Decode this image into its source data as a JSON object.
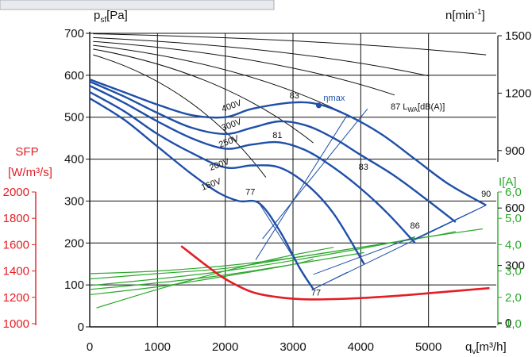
{
  "chart_data": {
    "type": "line",
    "title": "",
    "xlabel": {
      "main": "q",
      "sub": "v",
      "unit": "[m³/h]"
    },
    "ylabel_left": {
      "main": "p",
      "sub": "sf",
      "unit": "[Pa]"
    },
    "ylabel_right_rpm": {
      "main": "n[min",
      "sup": "-1",
      "close": "]"
    },
    "ylabel_sfp": {
      "line1": "SFP",
      "line2": "[W/m³/s]"
    },
    "ylabel_current": "I[A]",
    "xlim": [
      0,
      6000
    ],
    "ylim": [
      0,
      700
    ],
    "grid": true,
    "x_ticks": [
      "0",
      "1000",
      "2000",
      "3000",
      "4000",
      "5000"
    ],
    "x_tick_values": [
      0,
      1000,
      2000,
      3000,
      4000,
      5000
    ],
    "y_ticks": [
      "0",
      "100",
      "200",
      "300",
      "400",
      "500",
      "600",
      "700"
    ],
    "y_tick_values": [
      0,
      100,
      200,
      300,
      400,
      500,
      600,
      700
    ],
    "rpm_ticks": [
      "0",
      "300",
      "600",
      "900",
      "1200",
      "1500"
    ],
    "rpm_tick_values": [
      0,
      300,
      600,
      900,
      1200,
      1500
    ],
    "sfp_ticks": [
      "1000",
      "1200",
      "1400",
      "1600",
      "1800",
      "2000"
    ],
    "sfp_tick_values": [
      1000,
      1200,
      1400,
      1600,
      1800,
      2000
    ],
    "current_ticks": [
      "1,0",
      "2,0",
      "3,0",
      "4,0",
      "5,0",
      "6,0"
    ],
    "current_tick_values": [
      1.0,
      2.0,
      3.0,
      4.0,
      5.0,
      6.0
    ],
    "colors": {
      "pressure": "#1f4fa8",
      "rpm": "#111111",
      "sfp": "#e31e24",
      "current": "#2da82d",
      "grid": "#111111"
    },
    "pressure_series": [
      {
        "name": "400V",
        "x": [
          0,
          500,
          1000,
          1500,
          2000,
          2400,
          3000,
          3400,
          3800,
          4300,
          4800,
          5300,
          5850
        ],
        "y": [
          590,
          560,
          530,
          505,
          500,
          520,
          535,
          530,
          505,
          460,
          400,
          340,
          290
        ]
      },
      {
        "name": "300V",
        "x": [
          0,
          500,
          1000,
          1500,
          2000,
          2400,
          2800,
          3200,
          3600,
          4000,
          4500,
          5000,
          5400
        ],
        "y": [
          585,
          550,
          510,
          475,
          460,
          475,
          490,
          480,
          450,
          410,
          360,
          300,
          250
        ]
      },
      {
        "name": "250V",
        "x": [
          0,
          500,
          1000,
          1500,
          2000,
          2400,
          2800,
          3200,
          3600,
          4000,
          4400,
          4800
        ],
        "y": [
          575,
          535,
          490,
          450,
          425,
          435,
          440,
          420,
          380,
          330,
          270,
          200
        ]
      },
      {
        "name": "200V",
        "x": [
          0,
          500,
          1000,
          1500,
          2000,
          2400,
          2800,
          3200,
          3600,
          4050
        ],
        "y": [
          560,
          515,
          460,
          415,
          380,
          385,
          380,
          340,
          270,
          150
        ]
      },
      {
        "name": "160V",
        "x": [
          0,
          500,
          1000,
          1500,
          1900,
          2200,
          2500,
          2800,
          3100,
          3300
        ],
        "y": [
          545,
          495,
          430,
          365,
          320,
          300,
          295,
          230,
          140,
          90
        ]
      }
    ],
    "pressure_curve_labels": [
      "400V",
      "300V",
      "250V",
      "200V",
      "160V"
    ],
    "rpm_series": {
      "x_start": [
        50,
        50,
        50,
        50,
        50,
        50
      ],
      "x_end": [
        5850,
        5000,
        4500,
        4000,
        3300,
        2600
      ],
      "rpm_start": [
        1510,
        1490,
        1470,
        1450,
        1430,
        1400
      ],
      "rpm_end": [
        1400,
        1290,
        1190,
        1050,
        940,
        760
      ]
    },
    "sfp_series": {
      "name": "SFP",
      "x": [
        1350,
        1700,
        2000,
        2400,
        2800,
        3200,
        3800,
        4500,
        5200,
        5900
      ],
      "y": [
        1590,
        1450,
        1340,
        1240,
        1200,
        1185,
        1190,
        1210,
        1240,
        1270
      ]
    },
    "current_series": [
      {
        "x": [
          0,
          1000,
          2000,
          3000,
          4000,
          5000,
          5800
        ],
        "y": [
          2.9,
          3.0,
          3.2,
          3.5,
          3.9,
          4.3,
          4.6
        ]
      },
      {
        "x": [
          0,
          1000,
          2000,
          3000,
          4000,
          5000,
          5400
        ],
        "y": [
          2.7,
          2.9,
          3.1,
          3.5,
          3.9,
          4.3,
          4.5
        ]
      },
      {
        "x": [
          0,
          1000,
          2000,
          3000,
          4000,
          4800
        ],
        "y": [
          2.45,
          2.7,
          3.0,
          3.4,
          3.85,
          4.25
        ]
      },
      {
        "x": [
          0,
          1000,
          2000,
          3000,
          4050
        ],
        "y": [
          2.3,
          2.55,
          2.85,
          3.25,
          3.7
        ]
      },
      {
        "x": [
          0,
          1000,
          2000,
          3000,
          3300
        ],
        "y": [
          2.1,
          2.4,
          2.8,
          3.25,
          3.45
        ]
      },
      {
        "x": [
          100,
          1000,
          2000,
          2800,
          3600
        ],
        "y": [
          1.6,
          2.3,
          3.0,
          3.5,
          3.9
        ]
      }
    ],
    "sound_lines": [
      {
        "label": "77",
        "x": [
          2500,
          3300
        ],
        "y": [
          295,
          90
        ]
      },
      {
        "label": "81",
        "x": [
          2450,
          3800
        ],
        "y": [
          160,
          505
        ]
      },
      {
        "label": "83",
        "x": [
          2550,
          4100
        ],
        "y": [
          210,
          520
        ]
      },
      {
        "label": "86",
        "x": [
          3300,
          4800
        ],
        "y": [
          125,
          215
        ]
      },
      {
        "label": "90",
        "x": [
          3300,
          5850
        ],
        "y": [
          90,
          290
        ]
      }
    ],
    "annotations": {
      "eta_max": {
        "label": "ηmax",
        "x": 3380,
        "y": 528
      },
      "sound_unit": {
        "prefix": "87 L",
        "sub": "WA",
        "suffix": "[dB(A)]"
      },
      "sound_labels": [
        {
          "text": "83",
          "x": 3020,
          "y": 545
        },
        {
          "text": "81",
          "x": 2770,
          "y": 450
        },
        {
          "text": "77",
          "x": 2370,
          "y": 315
        },
        {
          "text": "83",
          "x": 4040,
          "y": 375
        },
        {
          "text": "86",
          "x": 4800,
          "y": 235
        },
        {
          "text": "77",
          "x": 3340,
          "y": 75
        },
        {
          "text": "90",
          "x": 5850,
          "y": 310
        }
      ]
    }
  }
}
